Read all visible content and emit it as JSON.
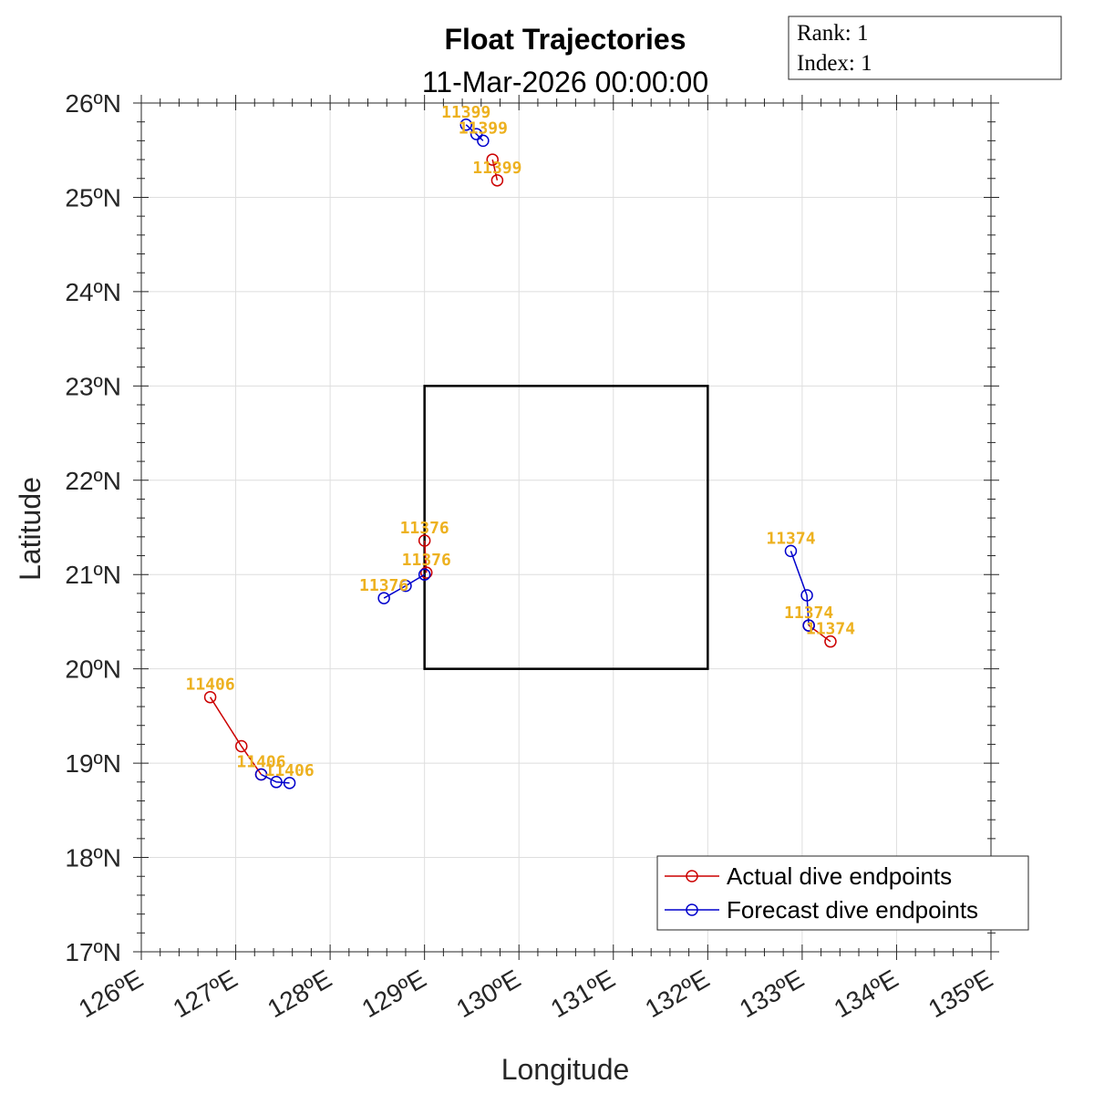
{
  "chart_data": {
    "type": "line",
    "title": "Float Trajectories",
    "subtitle": "11-Mar-2026 00:00:00",
    "xlabel": "Longitude",
    "ylabel": "Latitude",
    "xlim": [
      126,
      135
    ],
    "ylim": [
      17,
      26
    ],
    "x_ticks": [
      126,
      127,
      128,
      129,
      130,
      131,
      132,
      133,
      134,
      135
    ],
    "y_ticks": [
      17,
      18,
      19,
      20,
      21,
      22,
      23,
      24,
      25,
      26
    ],
    "x_tick_labels": [
      "126ºE",
      "127ºE",
      "128ºE",
      "129ºE",
      "130ºE",
      "131ºE",
      "132ºE",
      "133ºE",
      "134ºE",
      "135ºE"
    ],
    "y_tick_labels": [
      "17ºN",
      "18ºN",
      "19ºN",
      "20ºN",
      "21ºN",
      "22ºN",
      "23ºN",
      "24ºN",
      "25ºN",
      "26ºN"
    ],
    "grid": true,
    "legend_position": "bottom-right",
    "info_box": {
      "rank": "Rank:  1",
      "index": "Index:  1"
    },
    "region_box": {
      "lon": [
        129,
        132
      ],
      "lat": [
        20,
        23
      ]
    },
    "series": [
      {
        "name": "Actual dive endpoints",
        "color": "#CC0000",
        "tracks": [
          {
            "float": "11406",
            "lon": [
              126.73,
              127.06,
              127.27
            ],
            "lat": [
              19.7,
              19.18,
              18.88
            ]
          },
          {
            "float": "11376",
            "lon": [
              129.0,
              129.02
            ],
            "lat": [
              21.36,
              21.02
            ]
          },
          {
            "float": "11374",
            "lon": [
              133.3,
              133.07
            ],
            "lat": [
              20.29,
              20.46
            ]
          },
          {
            "float": "11399",
            "lon": [
              129.77,
              129.72
            ],
            "lat": [
              25.18,
              25.4
            ]
          }
        ]
      },
      {
        "name": "Forecast dive endpoints",
        "color": "#0000CC",
        "tracks": [
          {
            "float": "11406",
            "lon": [
              127.27,
              127.43,
              127.57
            ],
            "lat": [
              18.88,
              18.8,
              18.79
            ]
          },
          {
            "float": "11376",
            "lon": [
              129.0,
              128.8,
              128.57
            ],
            "lat": [
              21.0,
              20.88,
              20.75
            ]
          },
          {
            "float": "11374",
            "lon": [
              133.07,
              133.05,
              132.88
            ],
            "lat": [
              20.46,
              20.78,
              21.25
            ]
          },
          {
            "float": "11399",
            "lon": [
              129.62,
              129.55,
              129.44
            ],
            "lat": [
              25.6,
              25.67,
              25.77
            ]
          }
        ]
      }
    ],
    "float_labels": [
      {
        "text": "11406",
        "lon": 126.73,
        "lat": 19.7
      },
      {
        "text": "11406",
        "lon": 127.27,
        "lat": 18.88
      },
      {
        "text": "11406",
        "lon": 127.57,
        "lat": 18.79
      },
      {
        "text": "11376",
        "lon": 129.0,
        "lat": 21.36
      },
      {
        "text": "11376",
        "lon": 129.02,
        "lat": 21.02
      },
      {
        "text": "11376",
        "lon": 128.57,
        "lat": 20.75
      },
      {
        "text": "11374",
        "lon": 132.88,
        "lat": 21.25
      },
      {
        "text": "11374",
        "lon": 133.07,
        "lat": 20.46
      },
      {
        "text": "11374",
        "lon": 133.3,
        "lat": 20.29
      },
      {
        "text": "11399",
        "lon": 129.44,
        "lat": 25.77
      },
      {
        "text": "11399",
        "lon": 129.62,
        "lat": 25.6
      },
      {
        "text": "11399",
        "lon": 129.77,
        "lat": 25.18
      }
    ]
  }
}
